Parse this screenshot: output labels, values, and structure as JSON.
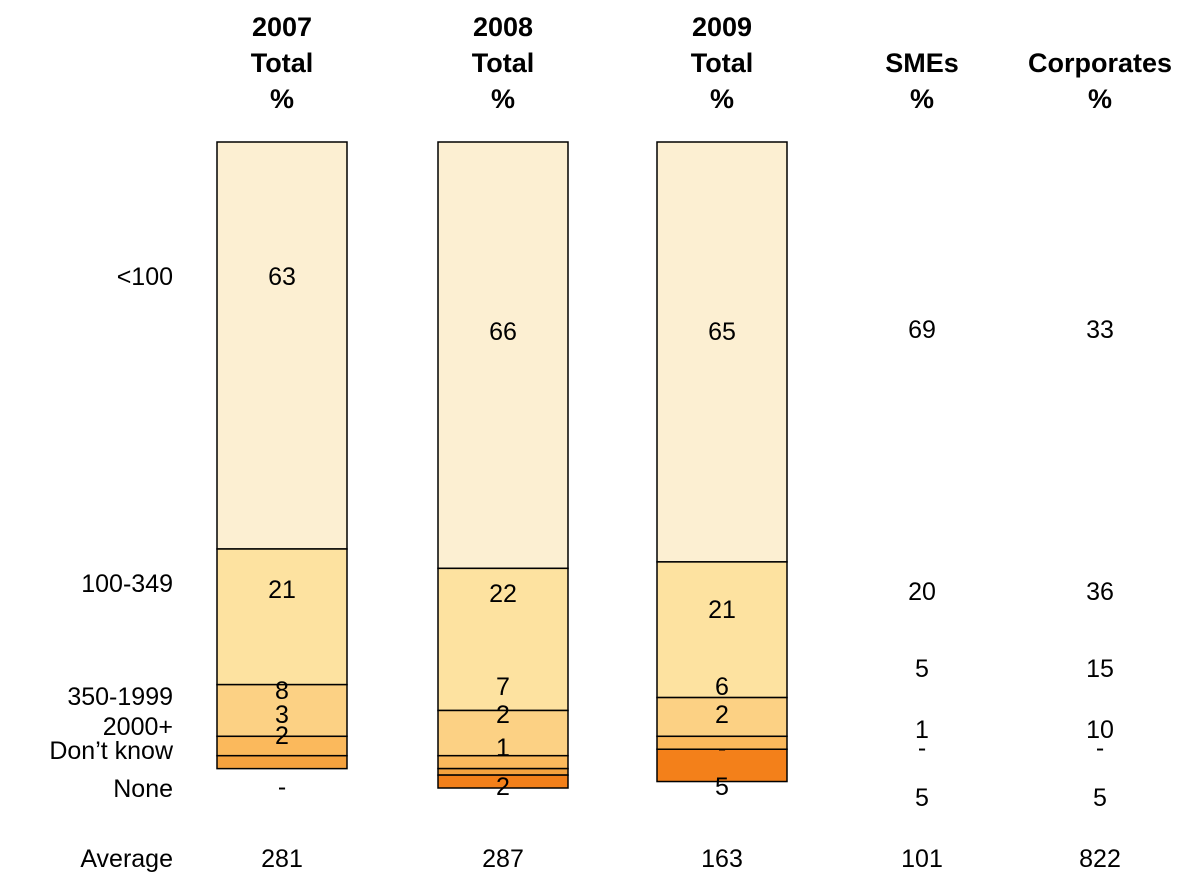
{
  "chart_data": {
    "type": "bar",
    "stacked": true,
    "columns": [
      {
        "header": [
          "2007",
          "Total",
          "%"
        ],
        "average": "281"
      },
      {
        "header": [
          "2008",
          "Total",
          "%"
        ],
        "average": "287"
      },
      {
        "header": [
          "2009",
          "Total",
          "%"
        ],
        "average": "163"
      },
      {
        "header": [
          "SMEs",
          "%"
        ],
        "average": "101"
      },
      {
        "header": [
          "Corporates",
          "%"
        ],
        "average": "822"
      }
    ],
    "row_labels": [
      "<100",
      "100-349",
      "350-1999",
      "2000+",
      "Don’t know",
      "None"
    ],
    "average_label": "Average",
    "bar_columns": [
      0,
      1,
      2
    ],
    "values": [
      [
        "63",
        "21",
        "8",
        "3",
        "2",
        "-"
      ],
      [
        "66",
        "22",
        "7",
        "2",
        "1",
        "2"
      ],
      [
        "65",
        "21",
        "6",
        "2",
        "-",
        "5"
      ],
      [
        "69",
        "20",
        "5",
        "1",
        "-",
        "5"
      ],
      [
        "33",
        "36",
        "15",
        "10",
        "-",
        "5"
      ]
    ],
    "bar_values": [
      [
        63,
        21,
        8,
        3,
        2,
        0
      ],
      [
        66,
        22,
        7,
        2,
        1,
        2
      ],
      [
        65,
        21,
        6,
        2,
        0,
        5
      ]
    ],
    "colors": [
      "#fcefd2",
      "#fde2a0",
      "#fcd184",
      "#fbb95c",
      "#f5a23e",
      "#f3801a"
    ],
    "ylim": [
      0,
      100
    ],
    "grid": false,
    "legend": "none"
  }
}
